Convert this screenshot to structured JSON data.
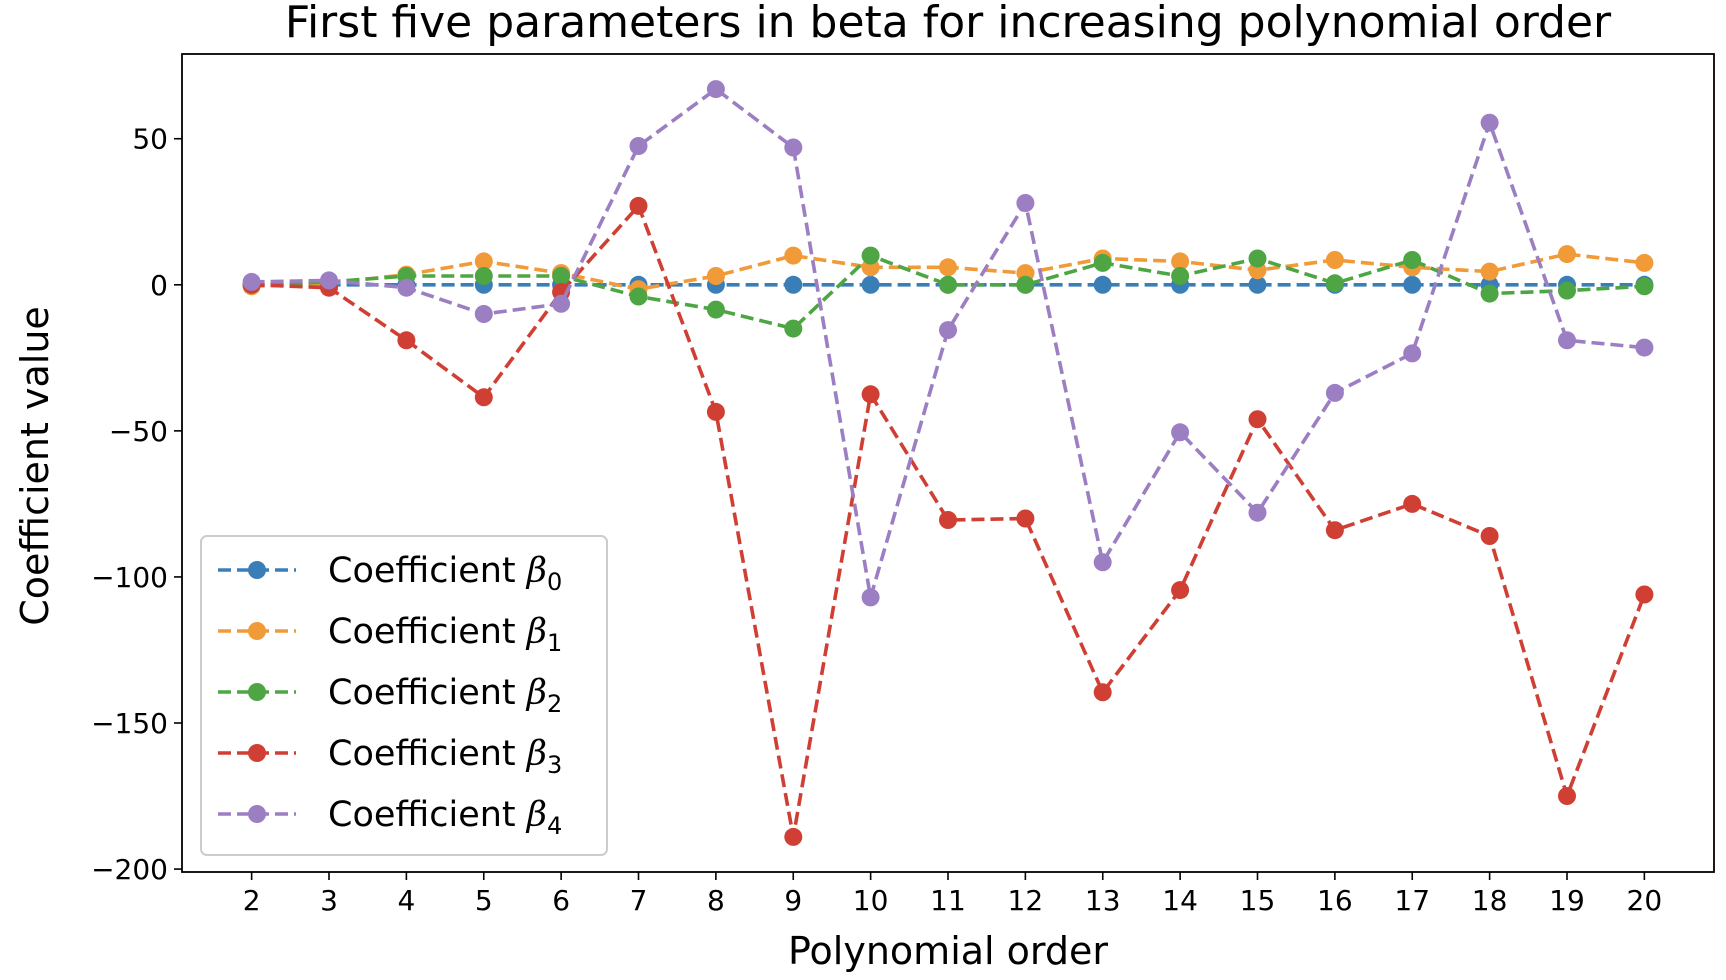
{
  "chart_data": {
    "type": "line",
    "title": "First five parameters in beta for increasing polynomial order",
    "xlabel": "Polynomial order",
    "ylabel": "Coefficient value",
    "x": [
      2,
      3,
      4,
      5,
      6,
      7,
      8,
      9,
      10,
      11,
      12,
      13,
      14,
      15,
      16,
      17,
      18,
      19,
      20
    ],
    "xticks": [
      "2",
      "3",
      "4",
      "5",
      "6",
      "7",
      "8",
      "9",
      "10",
      "11",
      "12",
      "13",
      "14",
      "15",
      "16",
      "17",
      "18",
      "19",
      "20"
    ],
    "xlim": [
      1.1,
      20.9
    ],
    "ylim": [
      -201,
      79
    ],
    "yticks": [
      50,
      0,
      -50,
      -100,
      -150,
      -200
    ],
    "ytick_labels": [
      "50",
      "0",
      "−50",
      "−100",
      "−150",
      "−200"
    ],
    "grid": false,
    "legend_position": "lower-left",
    "line_style": "dashed",
    "marker": "circle",
    "series": [
      {
        "name": "Coefficient β",
        "subscript": "0",
        "color": "#3a7eb8",
        "values": [
          0,
          0,
          0,
          0,
          0,
          0,
          0,
          0,
          0,
          0,
          0,
          0,
          0,
          0,
          0,
          0,
          0,
          0,
          0
        ]
      },
      {
        "name": "Coefficient β",
        "subscript": "1",
        "color": "#f19a38",
        "values": [
          -0.5,
          0.5,
          3.5,
          8,
          4,
          -1.5,
          3,
          10,
          6,
          6,
          4,
          9,
          8,
          5,
          8.5,
          6,
          4.5,
          10.5,
          7.5
        ]
      },
      {
        "name": "Coefficient β",
        "subscript": "2",
        "color": "#4ea544",
        "values": [
          0,
          1,
          3,
          3,
          3,
          -4,
          -8.5,
          -15,
          10,
          0,
          0,
          7.5,
          3,
          9,
          0.5,
          8.5,
          -3,
          -2,
          -0.5
        ]
      },
      {
        "name": "Coefficient β",
        "subscript": "3",
        "color": "#d03f34",
        "values": [
          0,
          -1,
          -19,
          -38.5,
          -2.5,
          27,
          -43.5,
          -189,
          -37.5,
          -80.5,
          -80,
          -139.5,
          -104.5,
          -46,
          -84,
          -75,
          -86,
          -175,
          -106
        ]
      },
      {
        "name": "Coefficient β",
        "subscript": "4",
        "color": "#9c7ec3",
        "values": [
          1,
          1.5,
          -1,
          -10,
          -6.5,
          47.5,
          67,
          47,
          -107,
          -15.5,
          28,
          -95,
          -50.5,
          -78,
          -37,
          -23.5,
          55.5,
          -19,
          -21.5
        ]
      }
    ]
  }
}
